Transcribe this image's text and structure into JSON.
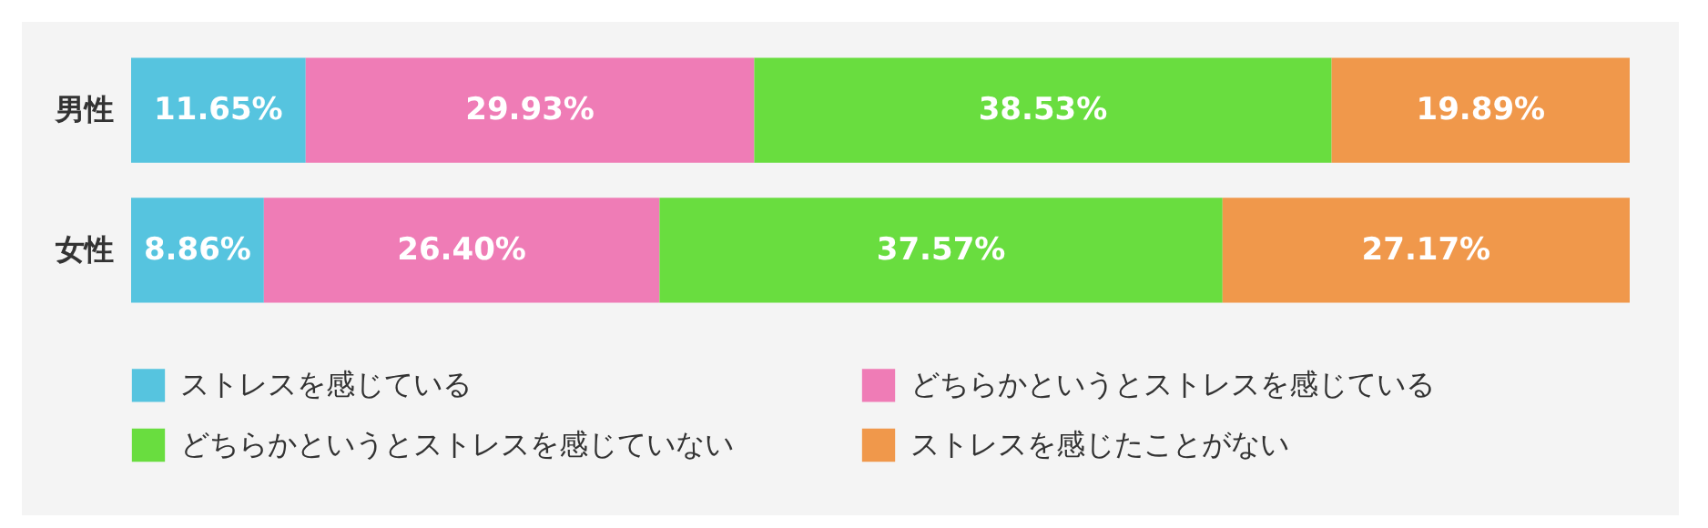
{
  "chart_data": {
    "type": "bar",
    "orientation": "horizontal",
    "stacked": true,
    "categories": [
      "男性",
      "女性"
    ],
    "xlim": [
      0,
      100
    ],
    "tick_labels": "y",
    "legend": "bottom",
    "series": [
      {
        "name": "ストレスを感じている",
        "color": "#56c4df",
        "values": [
          11.65,
          8.86
        ],
        "value_labels": [
          "11.65%",
          "8.86%"
        ]
      },
      {
        "name": "どちらかというとストレスを感じている",
        "color": "#ef7cb6",
        "values": [
          29.93,
          26.4
        ],
        "value_labels": [
          "29.93%",
          "26.40%"
        ]
      },
      {
        "name": "どちらかというとストレスを感じていない",
        "color": "#69dd3f",
        "values": [
          38.53,
          37.57
        ],
        "value_labels": [
          "38.53%",
          "37.57%"
        ]
      },
      {
        "name": "ストレスを感じたことがない",
        "color": "#f0984b",
        "values": [
          19.89,
          27.17
        ],
        "value_labels": [
          "19.89%",
          "27.17%"
        ]
      }
    ]
  }
}
